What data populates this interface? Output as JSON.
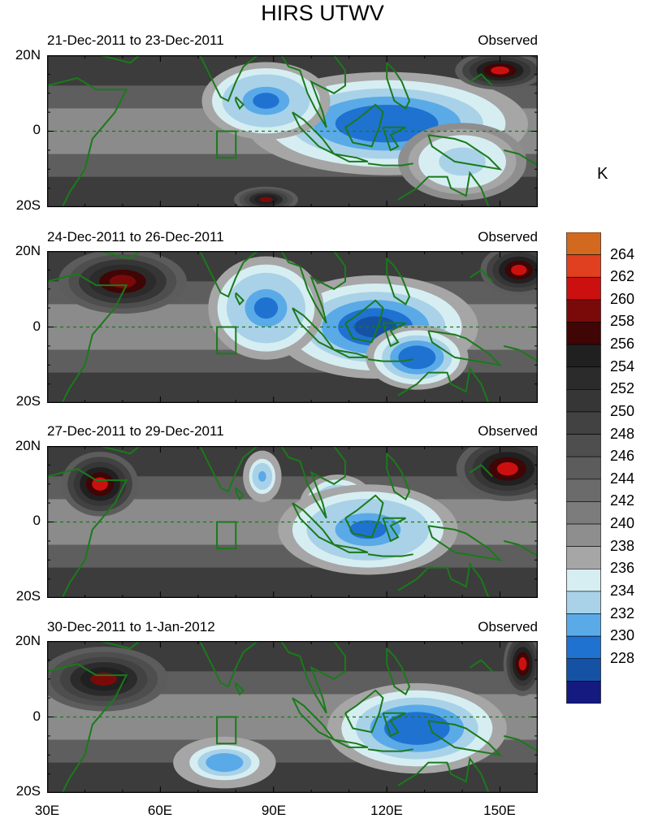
{
  "title": "HIRS UTWV",
  "unit_label": "K",
  "panels": [
    {
      "date_range": "21-Dec-2011 to 23-Dec-2011",
      "tag": "Observed"
    },
    {
      "date_range": "24-Dec-2011 to 26-Dec-2011",
      "tag": "Observed"
    },
    {
      "date_range": "27-Dec-2011 to 29-Dec-2011",
      "tag": "Observed"
    },
    {
      "date_range": "30-Dec-2011 to 1-Jan-2012",
      "tag": "Observed"
    }
  ],
  "lat_ticks": [
    "20N",
    "0",
    "20S"
  ],
  "lon_ticks": [
    "30E",
    "60E",
    "90E",
    "120E",
    "150E"
  ],
  "colorbar_labels": [
    "264",
    "262",
    "260",
    "258",
    "256",
    "254",
    "252",
    "250",
    "248",
    "246",
    "244",
    "242",
    "240",
    "238",
    "236",
    "234",
    "232",
    "230",
    "228"
  ],
  "colors": {
    "coastline": "#1a7a1a",
    "colorbar": [
      "#d2691e",
      "#e0401f",
      "#cc1010",
      "#7a0a0a",
      "#400505",
      "#202020",
      "#2b2b2b",
      "#363636",
      "#424242",
      "#4e4e4e",
      "#5c5c5c",
      "#6b6b6b",
      "#7c7c7c",
      "#8e8e8e",
      "#a6a6a6",
      "#d6eef2",
      "#a9d2e8",
      "#5aaae8",
      "#1f72d0",
      "#1652a4",
      "#141a80"
    ]
  },
  "chart_data": {
    "type": "heatmap",
    "title": "HIRS UTWV",
    "variable_unit": "K",
    "x_axis": {
      "ticks": [
        "30E",
        "60E",
        "90E",
        "120E",
        "150E"
      ],
      "range_deg_east": [
        30,
        160
      ]
    },
    "y_axis": {
      "ticks": [
        "20N",
        "0",
        "20S"
      ],
      "range_deg": [
        -20,
        20
      ]
    },
    "colorbar_levels_K": [
      228,
      230,
      232,
      234,
      236,
      238,
      240,
      242,
      244,
      246,
      248,
      250,
      252,
      254,
      256,
      258,
      260,
      262,
      264
    ],
    "panels": [
      {
        "period": "21-Dec-2011 to 23-Dec-2011",
        "features": [
          {
            "lon": 120,
            "lat": 2,
            "sigma_lon": 22,
            "sigma_lat": 8,
            "value_K": 230
          },
          {
            "lon": 88,
            "lat": 8,
            "sigma_lon": 10,
            "sigma_lat": 6,
            "value_K": 231
          },
          {
            "lon": 140,
            "lat": -8,
            "sigma_lon": 10,
            "sigma_lat": 6,
            "value_K": 234
          },
          {
            "lon": 150,
            "lat": 16,
            "sigma_lon": 7,
            "sigma_lat": 3,
            "value_K": 262
          },
          {
            "lon": 88,
            "lat": -18,
            "sigma_lon": 5,
            "sigma_lat": 2,
            "value_K": 260
          }
        ]
      },
      {
        "period": "24-Dec-2011 to 26-Dec-2011",
        "features": [
          {
            "lon": 117,
            "lat": 0,
            "sigma_lon": 16,
            "sigma_lat": 8,
            "value_K": 229
          },
          {
            "lon": 88,
            "lat": 5,
            "sigma_lon": 9,
            "sigma_lat": 8,
            "value_K": 231
          },
          {
            "lon": 128,
            "lat": -8,
            "sigma_lon": 8,
            "sigma_lat": 5,
            "value_K": 230
          },
          {
            "lon": 50,
            "lat": 12,
            "sigma_lon": 10,
            "sigma_lat": 5,
            "value_K": 261
          },
          {
            "lon": 155,
            "lat": 15,
            "sigma_lon": 6,
            "sigma_lat": 4,
            "value_K": 263
          }
        ]
      },
      {
        "period": "27-Dec-2011 to 29-Dec-2011",
        "features": [
          {
            "lon": 107,
            "lat": 4,
            "sigma_lon": 6,
            "sigma_lat": 5,
            "value_K": 228
          },
          {
            "lon": 115,
            "lat": -2,
            "sigma_lon": 14,
            "sigma_lat": 7,
            "value_K": 231
          },
          {
            "lon": 87,
            "lat": 12,
            "sigma_lon": 3,
            "sigma_lat": 4,
            "value_K": 233
          },
          {
            "lon": 44,
            "lat": 10,
            "sigma_lon": 6,
            "sigma_lat": 5,
            "value_K": 263
          },
          {
            "lon": 152,
            "lat": 14,
            "sigma_lon": 8,
            "sigma_lat": 5,
            "value_K": 263
          }
        ]
      },
      {
        "period": "30-Dec-2011 to 1-Jan-2012",
        "features": [
          {
            "lon": 128,
            "lat": -3,
            "sigma_lon": 14,
            "sigma_lat": 7,
            "value_K": 230
          },
          {
            "lon": 77,
            "lat": -12,
            "sigma_lon": 8,
            "sigma_lat": 4,
            "value_K": 232
          },
          {
            "lon": 45,
            "lat": 10,
            "sigma_lon": 10,
            "sigma_lat": 5,
            "value_K": 260
          },
          {
            "lon": 156,
            "lat": 14,
            "sigma_lon": 3,
            "sigma_lat": 5,
            "value_K": 262
          }
        ]
      }
    ],
    "markers": {
      "dashed_equator": true,
      "box": {
        "lon": [
          75,
          80
        ],
        "lat": [
          -7,
          0
        ]
      }
    }
  }
}
